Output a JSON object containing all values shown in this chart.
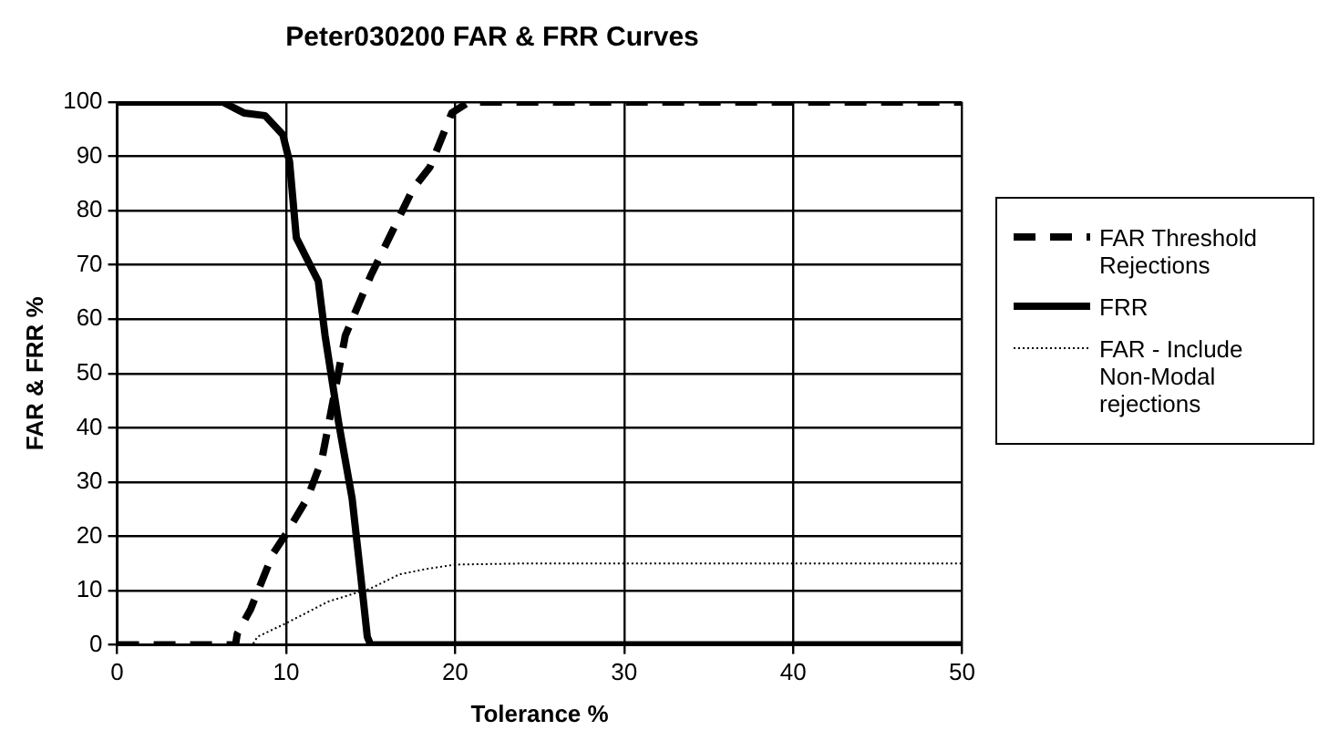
{
  "chart_data": {
    "type": "line",
    "title": "Peter030200 FAR & FRR Curves",
    "xlabel": "Tolerance %",
    "ylabel": "FAR & FRR %",
    "xlim": [
      0,
      50
    ],
    "xticks": [
      0,
      10,
      20,
      30,
      40,
      50
    ],
    "ylim": [
      0,
      100
    ],
    "yticks": [
      0,
      10,
      20,
      30,
      40,
      50,
      60,
      70,
      80,
      90,
      100
    ],
    "grid": true,
    "legend": "right",
    "marker": "none",
    "series": [
      {
        "name": "FAR Threshold Rejections",
        "color": "#000000",
        "line_style": "dashed",
        "x": [
          0,
          7,
          7.1,
          7.9,
          9.2,
          10,
          11.25,
          12.1,
          12.9,
          13.5,
          15,
          16.25,
          17.5,
          18.5,
          19.8,
          20.8,
          22,
          50
        ],
        "values": [
          0,
          0,
          2,
          6.6,
          16.7,
          20.5,
          27,
          34,
          47,
          57,
          68,
          76,
          84,
          88,
          98,
          100,
          100,
          100
        ]
      },
      {
        "name": "FRR",
        "color": "#000000",
        "line_style": "solid",
        "x": [
          0,
          6.25,
          7.5,
          8.75,
          9.8,
          10.2,
          10.6,
          11.25,
          11.9,
          12.3,
          13.1,
          13.9,
          14.4,
          14.8,
          15,
          50
        ],
        "values": [
          100,
          100,
          98,
          97.5,
          94,
          89,
          75,
          71,
          67,
          57,
          41,
          27,
          13,
          1.5,
          0,
          0
        ]
      },
      {
        "name": "FAR - Include Non-Modal rejections",
        "color": "#000000",
        "line_style": "dotted",
        "x": [
          0,
          8,
          8.3,
          10,
          12.5,
          15,
          16.7,
          18.3,
          20,
          24,
          50
        ],
        "values": [
          0,
          0,
          1.5,
          4,
          8,
          10.4,
          13,
          14,
          14.8,
          15,
          15
        ]
      }
    ]
  }
}
